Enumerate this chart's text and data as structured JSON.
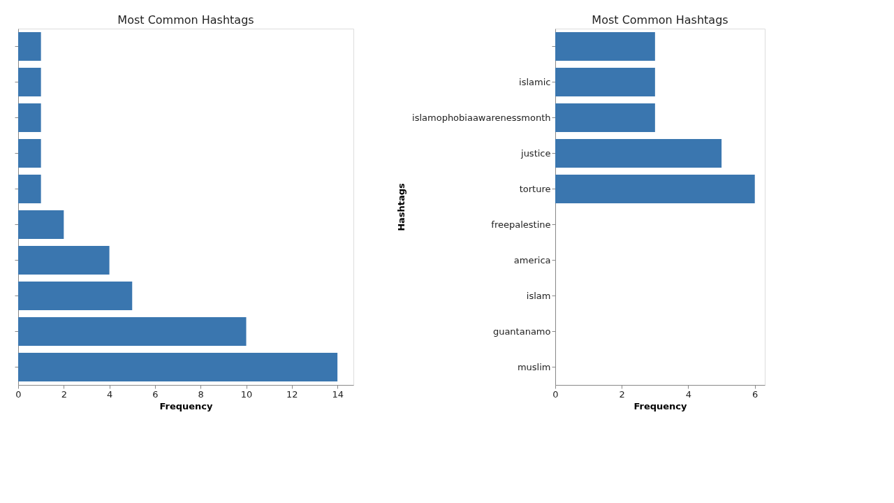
{
  "chart_data": [
    {
      "type": "bar",
      "orientation": "horizontal",
      "title": "Most Common Hashtags",
      "xlabel": "Frequency",
      "categories": [
        null,
        null,
        null,
        null,
        null,
        null,
        null,
        null,
        null,
        null
      ],
      "series": [
        {
          "color": "#3a76af",
          "values": [
            1,
            1,
            1,
            1,
            1,
            2,
            4,
            5,
            10,
            14
          ]
        }
      ],
      "xlim": [
        0,
        14.7
      ],
      "xticks": [
        0,
        2,
        4,
        6,
        8,
        10,
        12,
        14
      ],
      "tick_labels": "x",
      "grid": false,
      "legend": false
    },
    {
      "type": "bar",
      "orientation": "horizontal",
      "title": "Most Common Hashtags",
      "xlabel": "Frequency",
      "ylabel": "Hashtags",
      "categories": [
        null,
        "islamic",
        "islamophobiaawarenessmonth",
        "justice",
        "torture",
        "freepalestine",
        "america",
        "islam",
        "guantanamo",
        "muslim"
      ],
      "series": [
        {
          "color": "#3a76af",
          "values": [
            3,
            3,
            3,
            5,
            6,
            null,
            null,
            null,
            null,
            null
          ]
        }
      ],
      "xlim": [
        0,
        6.3
      ],
      "xticks": [
        0,
        2,
        4,
        6
      ],
      "grid": false,
      "legend": false
    }
  ]
}
